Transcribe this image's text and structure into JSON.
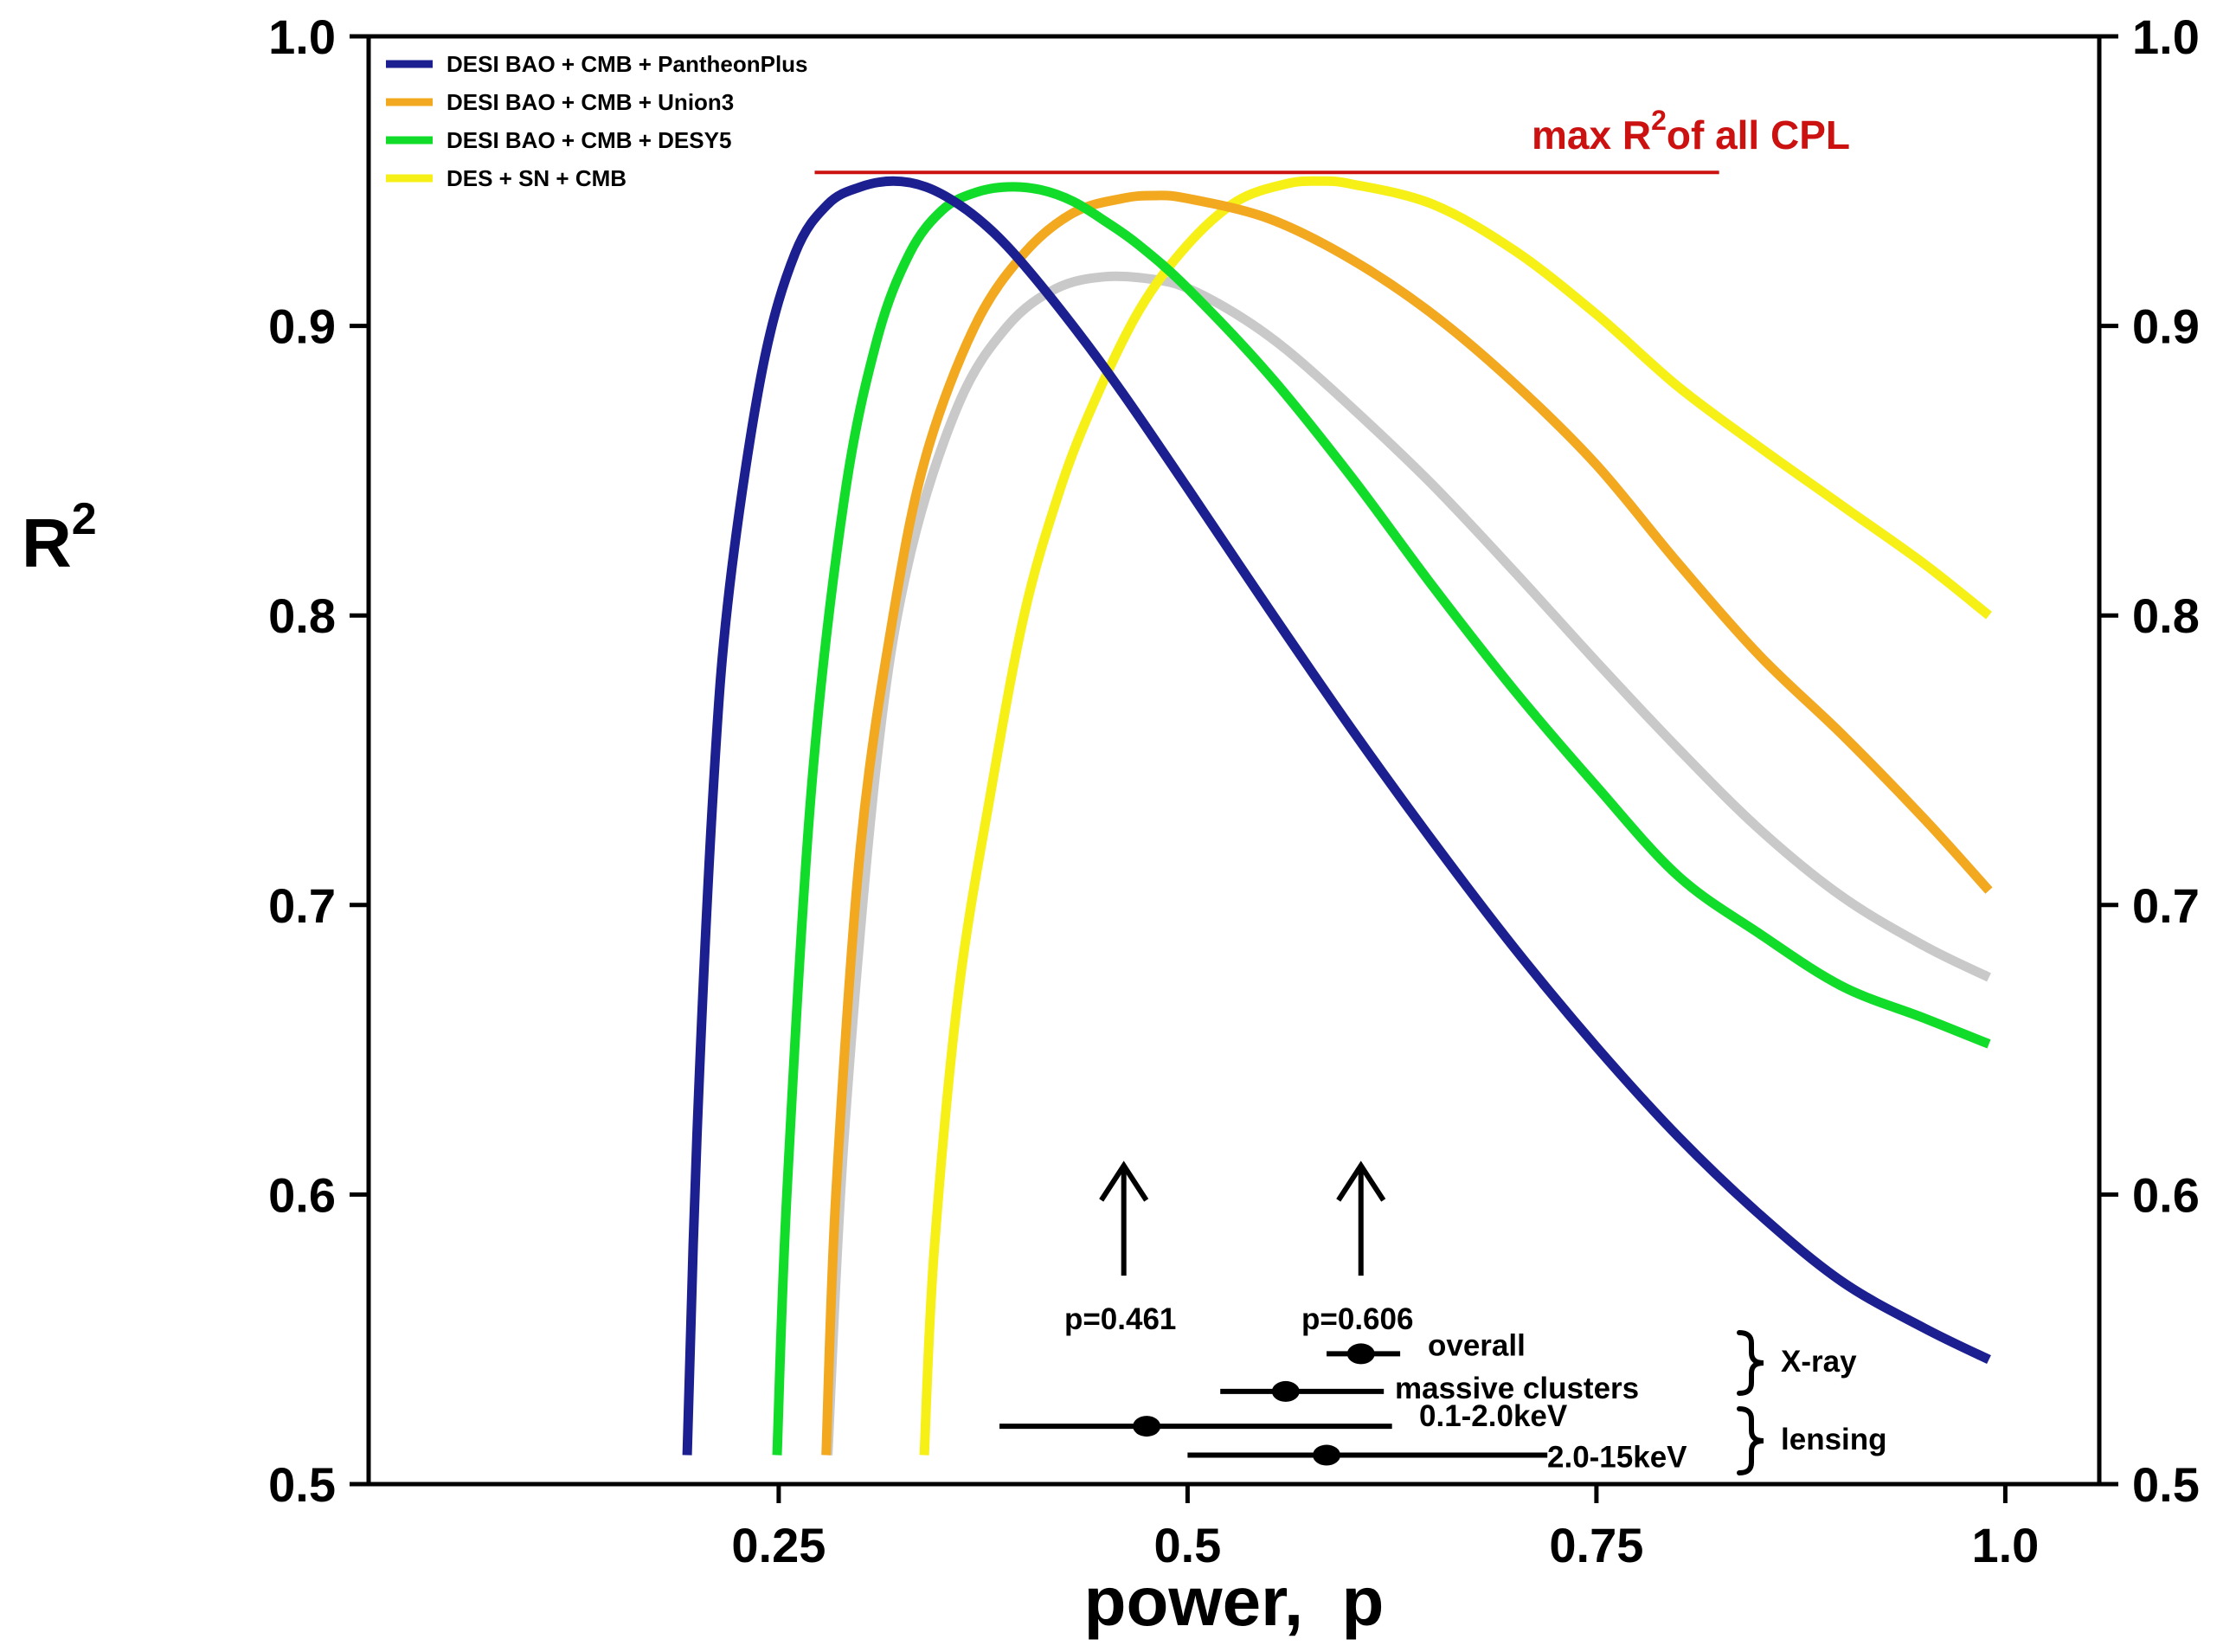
{
  "chart_data": {
    "type": "line",
    "xlabel": "power,  p",
    "ylabel": "R",
    "ylabel_superscript": "2",
    "xlim": [
      0.0,
      1.05
    ],
    "ylim": [
      0.5,
      1.0
    ],
    "x_ticks": [
      {
        "value": 0.25,
        "label": "0.25"
      },
      {
        "value": 0.5,
        "label": "0.5"
      },
      {
        "value": 0.75,
        "label": "0.75"
      },
      {
        "value": 1.0,
        "label": "1.0"
      }
    ],
    "y_ticks": [
      {
        "value": 0.5,
        "label": "0.5"
      },
      {
        "value": 0.6,
        "label": "0.6"
      },
      {
        "value": 0.7,
        "label": "0.7"
      },
      {
        "value": 0.8,
        "label": "0.8"
      },
      {
        "value": 0.9,
        "label": "0.9"
      },
      {
        "value": 1.0,
        "label": "1.0"
      }
    ],
    "series": [
      {
        "name": "DESI BAO + CMB + PantheonPlus",
        "color": "#1c1f8f",
        "in_legend": true,
        "x": [
          0.194,
          0.2,
          0.21,
          0.22,
          0.24,
          0.26,
          0.28,
          0.3,
          0.32,
          0.34,
          0.36,
          0.38,
          0.4,
          0.43,
          0.46,
          0.5,
          0.55,
          0.6,
          0.65,
          0.7,
          0.75,
          0.8,
          0.85,
          0.9,
          0.95,
          0.99
        ],
        "y": [
          0.51,
          0.62,
          0.74,
          0.81,
          0.885,
          0.925,
          0.942,
          0.948,
          0.95,
          0.948,
          0.942,
          0.933,
          0.921,
          0.9,
          0.877,
          0.844,
          0.802,
          0.761,
          0.722,
          0.685,
          0.651,
          0.62,
          0.593,
          0.57,
          0.554,
          0.543
        ]
      },
      {
        "name": "DESI BAO + CMB + Union3",
        "color": "#f2a81f",
        "in_legend": true,
        "x": [
          0.279,
          0.285,
          0.3,
          0.32,
          0.34,
          0.37,
          0.4,
          0.43,
          0.46,
          0.48,
          0.5,
          0.55,
          0.6,
          0.65,
          0.7,
          0.75,
          0.8,
          0.85,
          0.9,
          0.95,
          0.99
        ],
        "y": [
          0.51,
          0.6,
          0.72,
          0.8,
          0.855,
          0.9,
          0.925,
          0.939,
          0.944,
          0.945,
          0.944,
          0.937,
          0.923,
          0.904,
          0.88,
          0.852,
          0.818,
          0.786,
          0.759,
          0.73,
          0.705
        ]
      },
      {
        "name": "DESI BAO + CMB + DESY5",
        "color": "#11dc2a",
        "in_legend": true,
        "x": [
          0.249,
          0.255,
          0.27,
          0.29,
          0.31,
          0.33,
          0.35,
          0.37,
          0.39,
          0.41,
          0.43,
          0.45,
          0.47,
          0.5,
          0.55,
          0.6,
          0.65,
          0.7,
          0.75,
          0.8,
          0.85,
          0.9,
          0.95,
          0.99
        ],
        "y": [
          0.51,
          0.6,
          0.74,
          0.84,
          0.895,
          0.925,
          0.94,
          0.946,
          0.948,
          0.947,
          0.943,
          0.936,
          0.928,
          0.913,
          0.883,
          0.848,
          0.81,
          0.774,
          0.741,
          0.71,
          0.69,
          0.672,
          0.661,
          0.652
        ]
      },
      {
        "name": "DES + SN + CMB",
        "color": "#f6f017",
        "in_legend": true,
        "x": [
          0.339,
          0.345,
          0.36,
          0.38,
          0.4,
          0.42,
          0.44,
          0.47,
          0.5,
          0.53,
          0.56,
          0.58,
          0.6,
          0.65,
          0.7,
          0.75,
          0.8,
          0.85,
          0.9,
          0.95,
          0.99
        ],
        "y": [
          0.51,
          0.58,
          0.67,
          0.74,
          0.8,
          0.84,
          0.87,
          0.905,
          0.928,
          0.943,
          0.949,
          0.95,
          0.949,
          0.942,
          0.926,
          0.904,
          0.879,
          0.858,
          0.838,
          0.818,
          0.8
        ]
      },
      {
        "name": "",
        "color": "#c9c9c9",
        "in_legend": false,
        "x": [
          0.28,
          0.29,
          0.31,
          0.33,
          0.36,
          0.39,
          0.42,
          0.45,
          0.48,
          0.5,
          0.53,
          0.56,
          0.6,
          0.65,
          0.7,
          0.75,
          0.8,
          0.85,
          0.9,
          0.95,
          0.99
        ],
        "y": [
          0.51,
          0.62,
          0.75,
          0.82,
          0.873,
          0.9,
          0.913,
          0.917,
          0.916,
          0.913,
          0.904,
          0.892,
          0.872,
          0.845,
          0.815,
          0.784,
          0.754,
          0.726,
          0.703,
          0.686,
          0.675
        ]
      }
    ],
    "reference_line": {
      "label": "max R",
      "label_superscript": "2",
      "label_suffix": "of all CPL",
      "color": "#cc1111",
      "y": 0.953,
      "x_start": 0.272,
      "x_end": 0.825
    },
    "arrows": [
      {
        "x": 0.461,
        "label": "p=0.461",
        "y_from": 0.572,
        "y_to": 0.61
      },
      {
        "x": 0.606,
        "label": "p=0.606",
        "y_from": 0.572,
        "y_to": 0.61
      }
    ],
    "error_bars": [
      {
        "label": "overall",
        "x": 0.606,
        "x_low": 0.585,
        "x_high": 0.63,
        "y": 0.545
      },
      {
        "label": "massive clusters",
        "x": 0.56,
        "x_low": 0.52,
        "x_high": 0.62,
        "y": 0.532
      },
      {
        "label": "0.1-2.0keV",
        "x": 0.475,
        "x_low": 0.385,
        "x_high": 0.625,
        "y": 0.52
      },
      {
        "label": "2.0-15keV",
        "x": 0.585,
        "x_low": 0.5,
        "x_high": 0.72,
        "y": 0.51
      }
    ],
    "groups": [
      {
        "label": "X-ray"
      },
      {
        "label": "lensing"
      }
    ]
  }
}
